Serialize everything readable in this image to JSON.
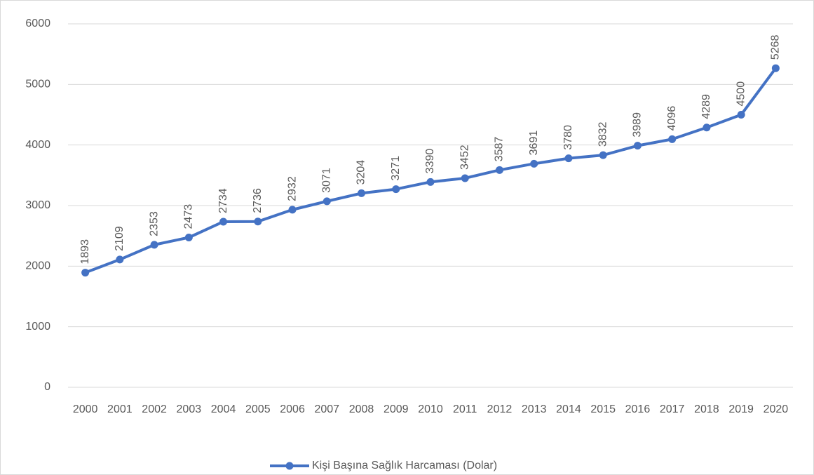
{
  "chart_data": {
    "type": "line",
    "categories": [
      "2000",
      "2001",
      "2002",
      "2003",
      "2004",
      "2005",
      "2006",
      "2007",
      "2008",
      "2009",
      "2010",
      "2011",
      "2012",
      "2013",
      "2014",
      "2015",
      "2016",
      "2017",
      "2018",
      "2019",
      "2020"
    ],
    "series": [
      {
        "name": "Kişi Başına Sağlık Harcaması (Dolar)",
        "color": "#4472c4",
        "values": [
          1893,
          2109,
          2353,
          2473,
          2734,
          2736,
          2932,
          3071,
          3204,
          3271,
          3390,
          3452,
          3587,
          3691,
          3780,
          3832,
          3989,
          4096,
          4289,
          4500,
          5268
        ]
      }
    ],
    "ylim": [
      0,
      6000
    ],
    "yticks": [
      0,
      1000,
      2000,
      3000,
      4000,
      5000,
      6000
    ],
    "grid": true,
    "legend": "bottom"
  }
}
